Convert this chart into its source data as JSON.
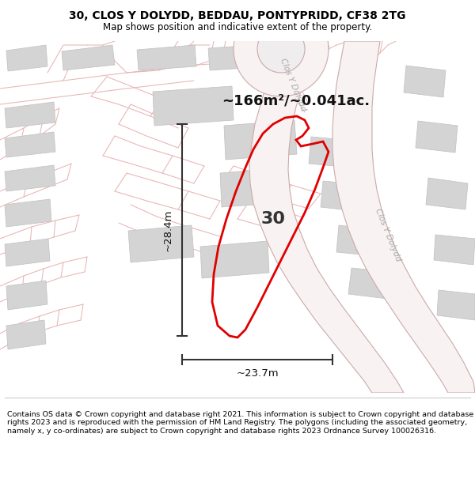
{
  "title_line1": "30, CLOS Y DOLYDD, BEDDAU, PONTYPRIDD, CF38 2TG",
  "title_line2": "Map shows position and indicative extent of the property.",
  "footer_text": "Contains OS data © Crown copyright and database right 2021. This information is subject to Crown copyright and database rights 2023 and is reproduced with the permission of HM Land Registry. The polygons (including the associated geometry, namely x, y co-ordinates) are subject to Crown copyright and database rights 2023 Ordnance Survey 100026316.",
  "area_text": "~166m²/~0.041ac.",
  "label_30": "30",
  "dim_width": "~23.7m",
  "dim_height": "~28.4m",
  "map_bg": "#eeeeee",
  "plot_color_red": "#e00000",
  "road_color": "#e8b0b0",
  "building_color": "#d4d4d4",
  "building_edge": "#c0c0c0",
  "road_label_color": "#aaaaaa",
  "figsize": [
    6.0,
    6.25
  ],
  "dpi": 100,
  "road_bg_color": "#f8f4f4",
  "road_centerline_color": "#c8a8a8"
}
